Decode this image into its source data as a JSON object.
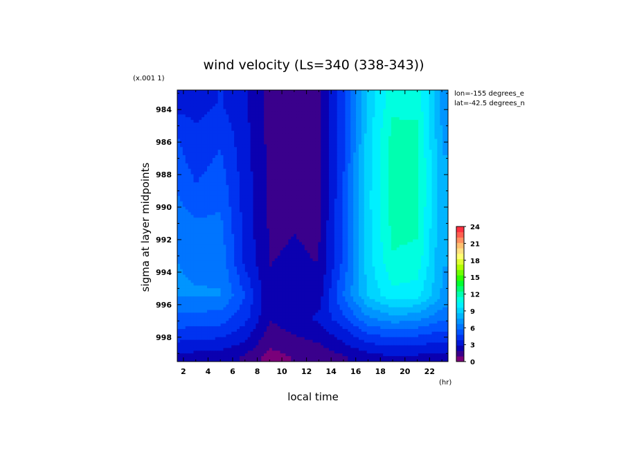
{
  "chart_data": {
    "type": "heatmap",
    "title": "wind velocity (Ls=340 (338-343))",
    "xlabel": "local time",
    "x_unit": "(hr)",
    "ylabel": "sigma at layer midpoints",
    "y_scale_note": "(x.001 1)",
    "annotations": [
      "lon=-155 degrees_e",
      "lat=-42.5 degrees_n"
    ],
    "x": [
      1,
      3,
      5,
      7,
      9,
      11,
      13,
      15,
      17,
      19,
      21,
      23
    ],
    "x_ticks": [
      "2",
      "4",
      "6",
      "8",
      "10",
      "12",
      "14",
      "16",
      "18",
      "20",
      "22"
    ],
    "x_tick_values": [
      2,
      4,
      6,
      8,
      10,
      12,
      14,
      16,
      18,
      20,
      22
    ],
    "xlim": [
      1.5,
      23.5
    ],
    "y": [
      983.6,
      985.3,
      987.2,
      989.2,
      991.2,
      993.3,
      995.4,
      996.8,
      997.7,
      998.5,
      999.2
    ],
    "y_ticks": [
      "984",
      "986",
      "988",
      "990",
      "992",
      "994",
      "996",
      "998"
    ],
    "y_tick_values": [
      984,
      986,
      988,
      990,
      992,
      994,
      996,
      998
    ],
    "ylim": [
      982.8,
      999.5
    ],
    "z_values": [
      [
        3.2,
        3.4,
        3.9,
        3.0,
        1.5,
        1.8,
        1.6,
        4.6,
        9.0,
        11.2,
        11.2,
        7.5
      ],
      [
        5.0,
        4.0,
        4.5,
        3.2,
        1.6,
        1.8,
        1.6,
        4.6,
        9.1,
        11.8,
        11.7,
        7.6
      ],
      [
        5.4,
        4.4,
        5.0,
        3.3,
        1.7,
        1.8,
        1.6,
        4.7,
        9.2,
        12.0,
        11.9,
        7.7
      ],
      [
        6.0,
        5.0,
        5.5,
        3.4,
        1.7,
        1.9,
        1.7,
        4.8,
        9.3,
        12.0,
        11.9,
        7.8
      ],
      [
        6.6,
        6.0,
        6.0,
        3.5,
        1.8,
        1.9,
        1.8,
        4.9,
        9.3,
        11.8,
        11.7,
        7.8
      ],
      [
        6.8,
        6.5,
        6.4,
        3.6,
        1.9,
        2.0,
        1.9,
        5.0,
        9.2,
        11.4,
        11.2,
        7.7
      ],
      [
        6.9,
        6.8,
        6.8,
        4.8,
        2.0,
        2.3,
        2.4,
        5.8,
        8.8,
        10.3,
        10.0,
        7.6
      ],
      [
        5.6,
        5.4,
        5.3,
        4.2,
        2.0,
        2.4,
        3.1,
        4.6,
        6.6,
        7.4,
        7.1,
        6.1
      ],
      [
        4.6,
        4.4,
        4.3,
        3.4,
        1.6,
        2.0,
        2.5,
        3.5,
        4.9,
        5.4,
        5.2,
        4.6
      ],
      [
        3.6,
        3.4,
        3.3,
        2.6,
        1.1,
        1.5,
        1.8,
        2.7,
        3.6,
        3.9,
        3.8,
        3.5
      ],
      [
        2.7,
        2.5,
        2.4,
        1.8,
        0.6,
        1.0,
        1.2,
        1.8,
        2.5,
        2.8,
        2.7,
        2.5
      ]
    ],
    "colorbar": {
      "ticks": [
        "24",
        "21",
        "18",
        "15",
        "12",
        "9",
        "6",
        "3",
        "0"
      ],
      "tick_values": [
        24,
        21,
        18,
        15,
        12,
        9,
        6,
        3,
        0
      ],
      "range": [
        0,
        24
      ],
      "colors": [
        "#7a007a",
        "#3a008c",
        "#0b00b0",
        "#0018d8",
        "#0033f0",
        "#0055ff",
        "#0075ff",
        "#0095ff",
        "#00b5ff",
        "#00d5ff",
        "#00f0ff",
        "#00ffe0",
        "#00ffb0",
        "#00ff70",
        "#00ff30",
        "#30ff00",
        "#70ff00",
        "#b0ff00",
        "#e0ff30",
        "#ffff70",
        "#ffe080",
        "#ffc070",
        "#ff9060",
        "#ff6050",
        "#ff3040"
      ]
    }
  }
}
